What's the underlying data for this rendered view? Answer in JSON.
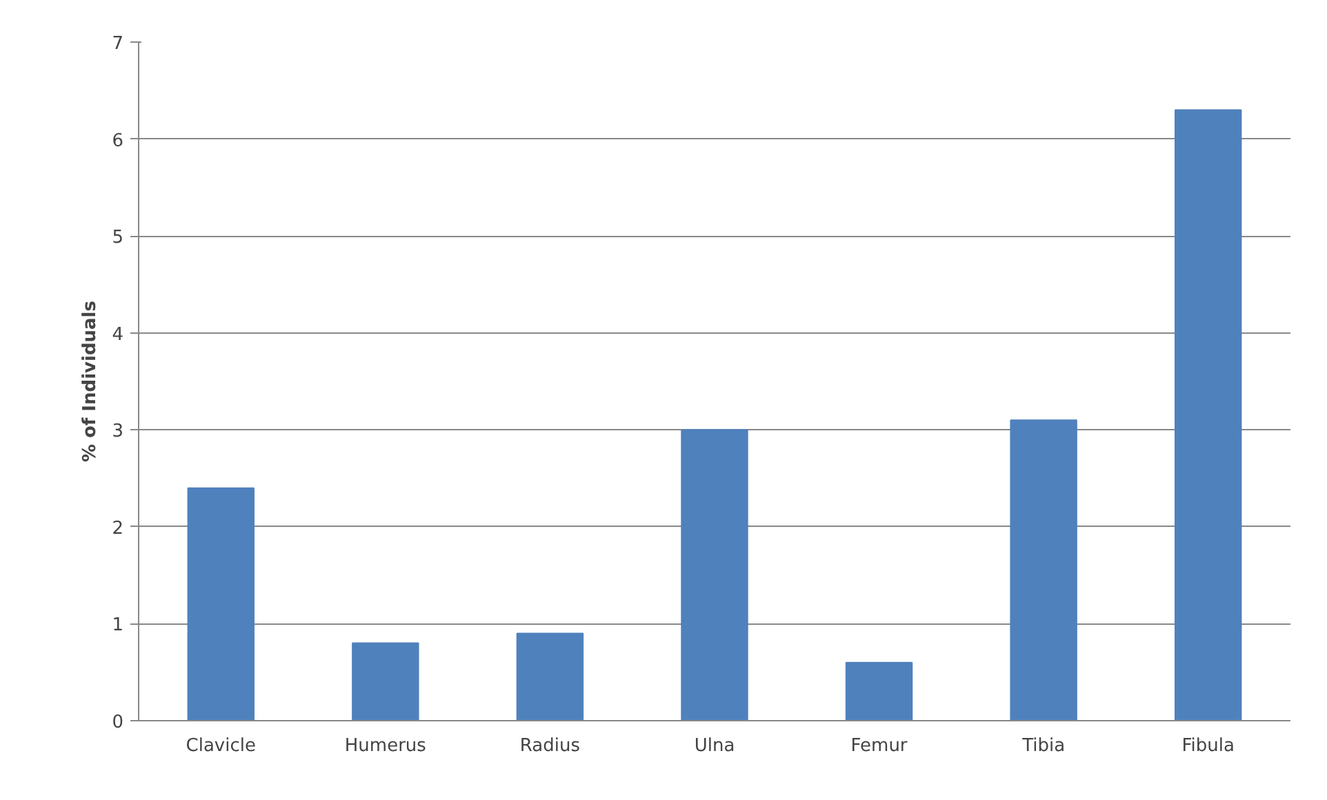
{
  "chart_data": {
    "type": "bar",
    "ylabel": "% of Individuals",
    "categories": [
      "Clavicle",
      "Humerus",
      "Radius",
      "Ulna",
      "Femur",
      "Tibia",
      "Fibula"
    ],
    "values": [
      2.4,
      0.8,
      0.9,
      3.0,
      0.6,
      3.1,
      6.3
    ],
    "color": "#4f81bd",
    "ylim": [
      0,
      7
    ],
    "yticks": [
      0,
      1,
      2,
      3,
      4,
      5,
      6,
      7
    ],
    "grid": "y"
  }
}
